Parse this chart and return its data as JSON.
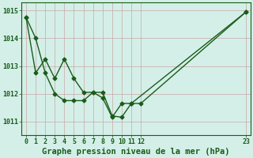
{
  "title": "Graphe pression niveau de la mer (hPa)",
  "background_color": "#d4efe8",
  "grid_color_major": "#c8a8a8",
  "grid_color_minor": "#e0c8c8",
  "line_color": "#1a5c1a",
  "xlim": [
    -0.5,
    23.5
  ],
  "ylim": [
    1010.5,
    1015.3
  ],
  "xticks": [
    0,
    1,
    2,
    3,
    4,
    5,
    6,
    7,
    8,
    9,
    10,
    11,
    12,
    23
  ],
  "yticks": [
    1011,
    1012,
    1013,
    1014,
    1015
  ],
  "series1_x": [
    0,
    1,
    2,
    3,
    4,
    5,
    6,
    7,
    8,
    9,
    10,
    11,
    23
  ],
  "series1_y": [
    1014.75,
    1014.0,
    1012.75,
    1012.0,
    1011.75,
    1011.75,
    1011.75,
    1012.05,
    1012.05,
    1011.2,
    1011.15,
    1011.65,
    1014.95
  ],
  "series2_x": [
    0,
    1,
    2,
    3,
    4,
    5,
    6,
    7,
    8,
    9,
    10,
    11,
    12,
    23
  ],
  "series2_y": [
    1014.75,
    1012.75,
    1013.25,
    1012.55,
    1013.25,
    1012.55,
    1012.05,
    1012.05,
    1011.85,
    1011.15,
    1011.65,
    1011.65,
    1011.65,
    1014.95
  ],
  "marker": "D",
  "markersize": 2.5,
  "linewidth": 1.0,
  "title_fontsize": 7.5,
  "tick_fontsize": 6.0
}
